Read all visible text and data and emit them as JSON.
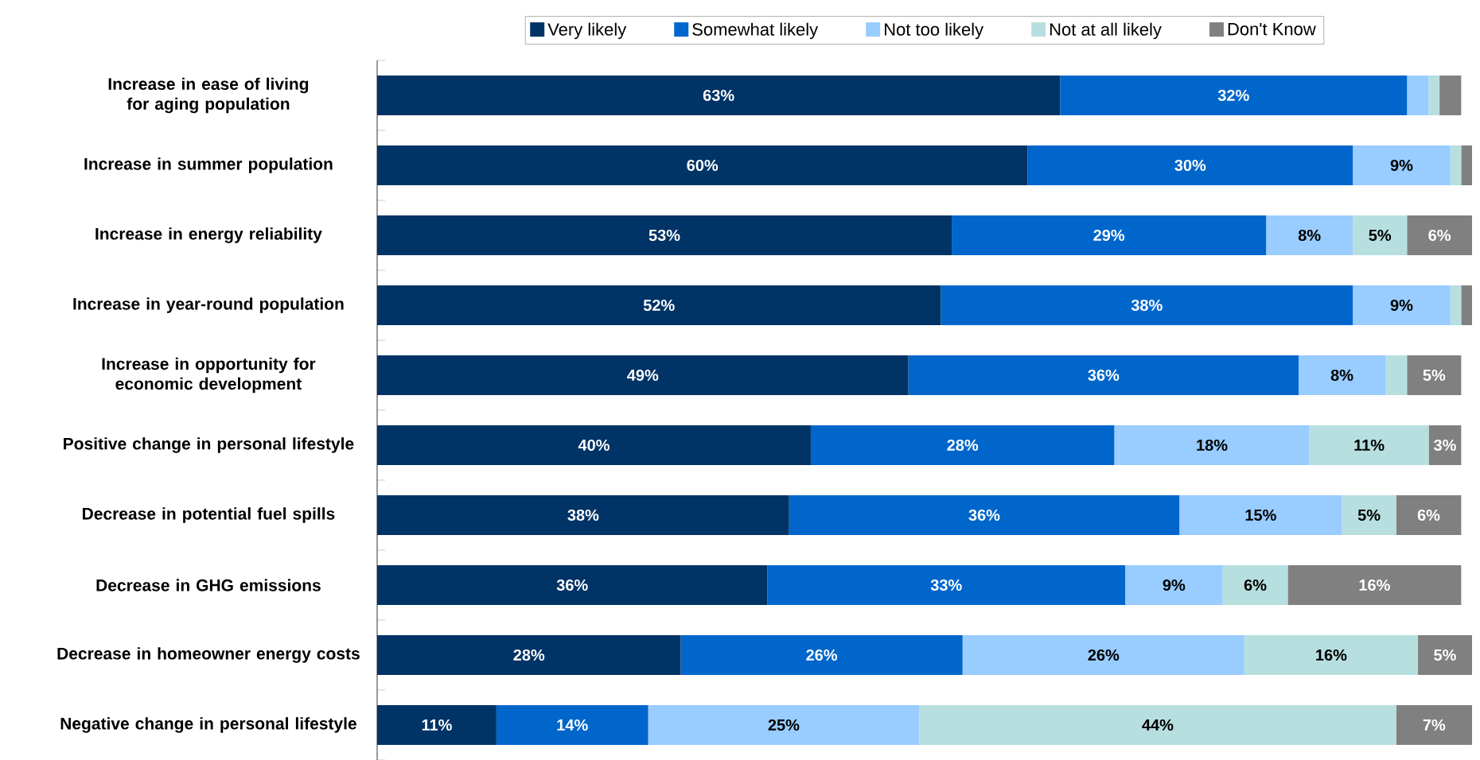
{
  "chart_data": {
    "type": "bar",
    "orientation": "horizontal",
    "stacked": true,
    "legend": "top",
    "categories": [
      "Increase in ease of living for aging population",
      "Increase in summer population",
      "Increase in energy reliability",
      "Increase in year-round population",
      "Increase in opportunity for economic development",
      "Positive change in personal lifestyle",
      "Decrease in potential fuel spills",
      "Decrease in GHG emissions",
      "Decrease in homeowner energy costs",
      "Negative change in personal lifestyle"
    ],
    "series": [
      {
        "name": "Very likely",
        "color": "#003366",
        "values": [
          63,
          60,
          53,
          52,
          49,
          40,
          38,
          36,
          28,
          11
        ],
        "value_labels": [
          "63%",
          "60%",
          "53%",
          "52%",
          "49%",
          "40%",
          "38%",
          "36%",
          "28%",
          "11%"
        ]
      },
      {
        "name": "Somewhat likely",
        "color": "#0066cc",
        "values": [
          32,
          30,
          29,
          38,
          36,
          28,
          36,
          33,
          26,
          14
        ],
        "value_labels": [
          "32%",
          "30%",
          "29%",
          "38%",
          "36%",
          "28%",
          "36%",
          "33%",
          "26%",
          "14%"
        ]
      },
      {
        "name": "Not too likely",
        "color": "#99ccff",
        "values": [
          2,
          9,
          8,
          9,
          8,
          18,
          15,
          9,
          26,
          25
        ],
        "value_labels": [
          null,
          "9%",
          "8%",
          "9%",
          "8%",
          "18%",
          "15%",
          "9%",
          "26%",
          "25%"
        ]
      },
      {
        "name": "Not at all likely",
        "color": "#b7dfe0",
        "values": [
          1,
          1,
          5,
          1,
          2,
          11,
          5,
          6,
          16,
          44
        ],
        "value_labels": [
          null,
          null,
          "5%",
          null,
          null,
          "11%",
          "5%",
          "6%",
          "16%",
          "44%"
        ]
      },
      {
        "name": "Don't Know",
        "color": "#808080",
        "values": [
          2,
          1,
          6,
          1,
          5,
          3,
          6,
          16,
          5,
          7
        ],
        "value_labels": [
          null,
          null,
          "6%",
          null,
          "5%",
          "3%",
          "6%",
          "16%",
          "5%",
          "7%"
        ]
      }
    ]
  }
}
